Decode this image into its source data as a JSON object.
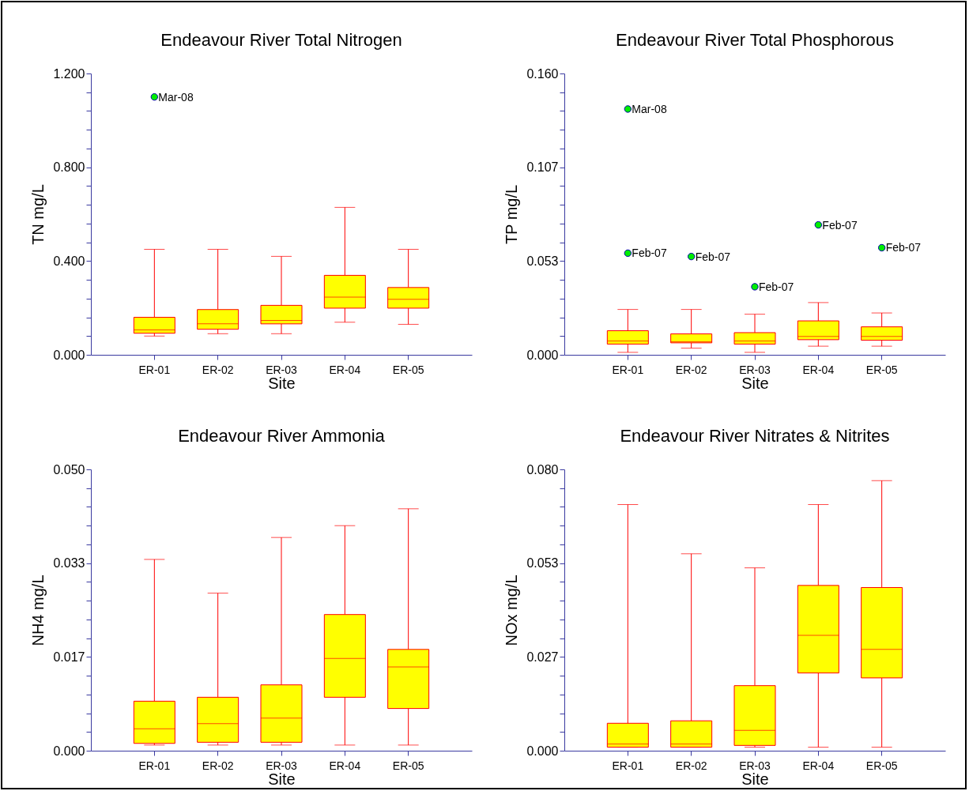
{
  "chart_data": [
    {
      "type": "box",
      "title": "Endeavour River Total Nitrogen",
      "xlabel": "Site",
      "ylabel": "TN mg/L",
      "categories": [
        "ER-01",
        "ER-02",
        "ER-03",
        "ER-04",
        "ER-05"
      ],
      "ylim": [
        0,
        1.2
      ],
      "yticks": [
        {
          "value": 0,
          "label": "0.000"
        },
        {
          "value": 0.08,
          "label": null
        },
        {
          "value": 0.16,
          "label": null
        },
        {
          "value": 0.24,
          "label": null
        },
        {
          "value": 0.32,
          "label": null
        },
        {
          "value": 0.4,
          "label": "0.400"
        },
        {
          "value": 0.48,
          "label": null
        },
        {
          "value": 0.56,
          "label": null
        },
        {
          "value": 0.64,
          "label": null
        },
        {
          "value": 0.72,
          "label": null
        },
        {
          "value": 0.8,
          "label": "0.800"
        },
        {
          "value": 0.88,
          "label": null
        },
        {
          "value": 0.96,
          "label": null
        },
        {
          "value": 1.04,
          "label": null
        },
        {
          "value": 1.12,
          "label": null
        },
        {
          "value": 1.2,
          "label": "1.200"
        }
      ],
      "series": [
        {
          "color": "#ffff00",
          "boxes": [
            {
              "low": 0.08,
              "q1": 0.092,
              "median": 0.106,
              "q3": 0.16,
              "high": 0.45
            },
            {
              "low": 0.09,
              "q1": 0.109,
              "median": 0.132,
              "q3": 0.193,
              "high": 0.45
            },
            {
              "low": 0.09,
              "q1": 0.132,
              "median": 0.147,
              "q3": 0.211,
              "high": 0.42
            },
            {
              "low": 0.139,
              "q1": 0.199,
              "median": 0.246,
              "q3": 0.339,
              "high": 0.629
            },
            {
              "low": 0.13,
              "q1": 0.199,
              "median": 0.237,
              "q3": 0.287,
              "high": 0.45
            }
          ]
        },
        {
          "type": "scatter",
          "color": "#00ee00",
          "marker": "circle",
          "x": [
            "ER-01"
          ],
          "values": [
            1.1
          ],
          "value_labels": [
            "Mar-08"
          ]
        }
      ]
    },
    {
      "type": "box",
      "title": "Endeavour River Total Phosphorous",
      "xlabel": "Site",
      "ylabel": "TP mg/L",
      "categories": [
        "ER-01",
        "ER-02",
        "ER-03",
        "ER-04",
        "ER-05"
      ],
      "ylim": [
        0,
        0.16
      ],
      "yticks": [
        {
          "value": 0,
          "label": "0.000"
        },
        {
          "value": 0.010667,
          "label": null
        },
        {
          "value": 0.021333,
          "label": null
        },
        {
          "value": 0.032,
          "label": null
        },
        {
          "value": 0.042667,
          "label": null
        },
        {
          "value": 0.053333,
          "label": "0.053"
        },
        {
          "value": 0.064,
          "label": null
        },
        {
          "value": 0.074667,
          "label": null
        },
        {
          "value": 0.085333,
          "label": null
        },
        {
          "value": 0.096,
          "label": null
        },
        {
          "value": 0.106667,
          "label": "0.107"
        },
        {
          "value": 0.117333,
          "label": null
        },
        {
          "value": 0.128,
          "label": null
        },
        {
          "value": 0.138667,
          "label": null
        },
        {
          "value": 0.149333,
          "label": null
        },
        {
          "value": 0.16,
          "label": "0.160"
        }
      ],
      "series": [
        {
          "color": "#ffff00",
          "boxes": [
            {
              "low": 0.0014,
              "q1": 0.0061,
              "median": 0.0079,
              "q3": 0.0137,
              "high": 0.0258
            },
            {
              "low": 0.0038,
              "q1": 0.0068,
              "median": 0.0074,
              "q3": 0.0119,
              "high": 0.0258
            },
            {
              "low": 0.0014,
              "q1": 0.0061,
              "median": 0.0079,
              "q3": 0.0126,
              "high": 0.0231
            },
            {
              "low": 0.0049,
              "q1": 0.0086,
              "median": 0.0105,
              "q3": 0.0193,
              "high": 0.0297
            },
            {
              "low": 0.0049,
              "q1": 0.0083,
              "median": 0.0105,
              "q3": 0.0159,
              "high": 0.0238
            }
          ]
        },
        {
          "type": "scatter",
          "color": "#00ee00",
          "marker": "circle",
          "x": [
            "ER-01",
            "ER-01",
            "ER-02",
            "ER-03",
            "ER-04",
            "ER-05"
          ],
          "values": [
            0.1398,
            0.0578,
            0.0559,
            0.0387,
            0.0739,
            0.0609
          ],
          "value_labels": [
            "Mar-08",
            "Feb-07",
            "Feb-07",
            "Feb-07",
            "Feb-07",
            "Feb-07"
          ]
        }
      ]
    },
    {
      "type": "box",
      "title": "Endeavour River Ammonia",
      "xlabel": "Site",
      "ylabel": "NH4 mg/L",
      "categories": [
        "ER-01",
        "ER-02",
        "ER-03",
        "ER-04",
        "ER-05"
      ],
      "ylim": [
        0,
        0.05
      ],
      "yticks": [
        {
          "value": 0,
          "label": "0.000"
        },
        {
          "value": 0.003333,
          "label": null
        },
        {
          "value": 0.006667,
          "label": null
        },
        {
          "value": 0.01,
          "label": null
        },
        {
          "value": 0.013333,
          "label": null
        },
        {
          "value": 0.016667,
          "label": "0.017"
        },
        {
          "value": 0.02,
          "label": null
        },
        {
          "value": 0.023333,
          "label": null
        },
        {
          "value": 0.026667,
          "label": null
        },
        {
          "value": 0.03,
          "label": null
        },
        {
          "value": 0.033333,
          "label": "0.033"
        },
        {
          "value": 0.036667,
          "label": null
        },
        {
          "value": 0.04,
          "label": null
        },
        {
          "value": 0.043333,
          "label": null
        },
        {
          "value": 0.046667,
          "label": null
        },
        {
          "value": 0.05,
          "label": "0.050"
        }
      ],
      "series": [
        {
          "color": "#ffff00",
          "boxes": [
            {
              "low": 0.001,
              "q1": 0.0013,
              "median": 0.0039,
              "q3": 0.0088,
              "high": 0.034
            },
            {
              "low": 0.001,
              "q1": 0.0015,
              "median": 0.0048,
              "q3": 0.0095,
              "high": 0.028
            },
            {
              "low": 0.001,
              "q1": 0.0015,
              "median": 0.0058,
              "q3": 0.0117,
              "high": 0.0379
            },
            {
              "low": 0.001,
              "q1": 0.0095,
              "median": 0.0164,
              "q3": 0.0242,
              "high": 0.04
            },
            {
              "low": 0.001,
              "q1": 0.0075,
              "median": 0.0149,
              "q3": 0.018,
              "high": 0.043
            }
          ]
        }
      ]
    },
    {
      "type": "box",
      "title": "Endeavour River Nitrates & Nitrites",
      "xlabel": "Site",
      "ylabel": "NOx mg/L",
      "categories": [
        "ER-01",
        "ER-02",
        "ER-03",
        "ER-04",
        "ER-05"
      ],
      "ylim": [
        0,
        0.08
      ],
      "yticks": [
        {
          "value": 0,
          "label": "0.000"
        },
        {
          "value": 0.005333,
          "label": null
        },
        {
          "value": 0.010667,
          "label": null
        },
        {
          "value": 0.016,
          "label": null
        },
        {
          "value": 0.021333,
          "label": null
        },
        {
          "value": 0.026667,
          "label": "0.027"
        },
        {
          "value": 0.032,
          "label": null
        },
        {
          "value": 0.037333,
          "label": null
        },
        {
          "value": 0.042667,
          "label": null
        },
        {
          "value": 0.048,
          "label": null
        },
        {
          "value": 0.053333,
          "label": "0.053"
        },
        {
          "value": 0.058667,
          "label": null
        },
        {
          "value": 0.064,
          "label": null
        },
        {
          "value": 0.069333,
          "label": null
        },
        {
          "value": 0.074667,
          "label": null
        },
        {
          "value": 0.08,
          "label": "0.080"
        }
      ],
      "series": [
        {
          "color": "#ffff00",
          "boxes": [
            {
              "low": 0.001,
              "q1": 0.001,
              "median": 0.0019,
              "q3": 0.0078,
              "high": 0.07
            },
            {
              "low": 0.001,
              "q1": 0.001,
              "median": 0.0019,
              "q3": 0.0085,
              "high": 0.056
            },
            {
              "low": 0.001,
              "q1": 0.0015,
              "median": 0.0058,
              "q3": 0.0185,
              "high": 0.052
            },
            {
              "low": 0.001,
              "q1": 0.0221,
              "median": 0.0328,
              "q3": 0.047,
              "high": 0.07
            },
            {
              "low": 0.001,
              "q1": 0.0207,
              "median": 0.0288,
              "q3": 0.0464,
              "high": 0.0768
            }
          ]
        }
      ]
    }
  ]
}
